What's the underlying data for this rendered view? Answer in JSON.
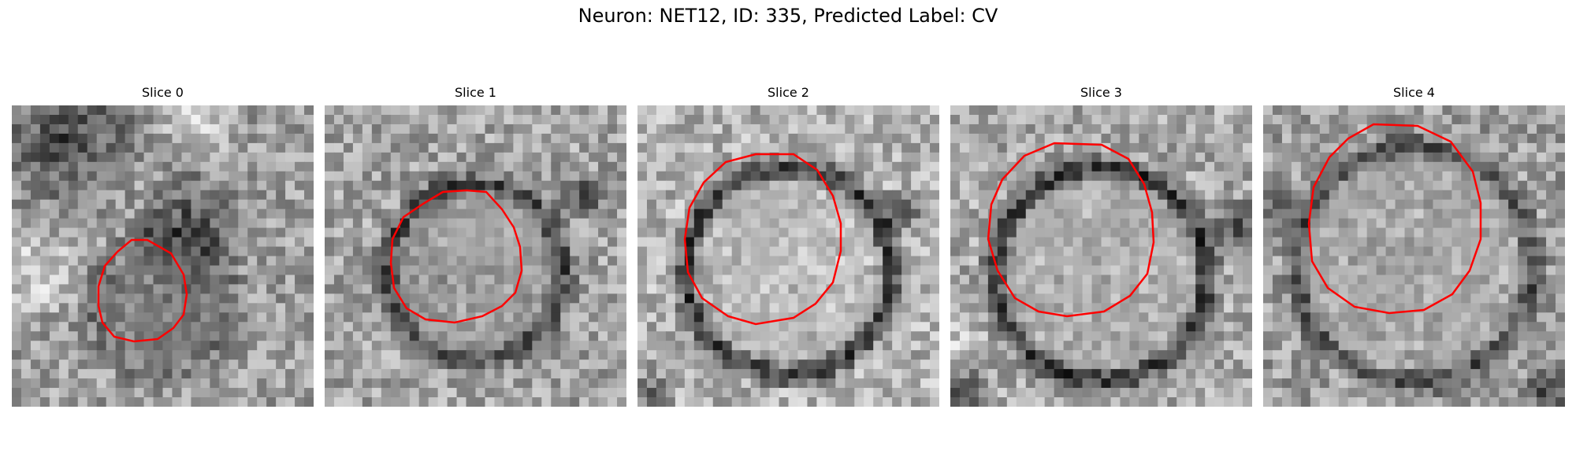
{
  "figure": {
    "title": "Neuron: NET12, ID: 335, Predicted Label: CV",
    "contour_color": "#ff0000"
  },
  "panels": [
    {
      "title": "Slice 0"
    },
    {
      "title": "Slice 1"
    },
    {
      "title": "Slice 2"
    },
    {
      "title": "Slice 3"
    },
    {
      "title": "Slice 4"
    }
  ]
}
